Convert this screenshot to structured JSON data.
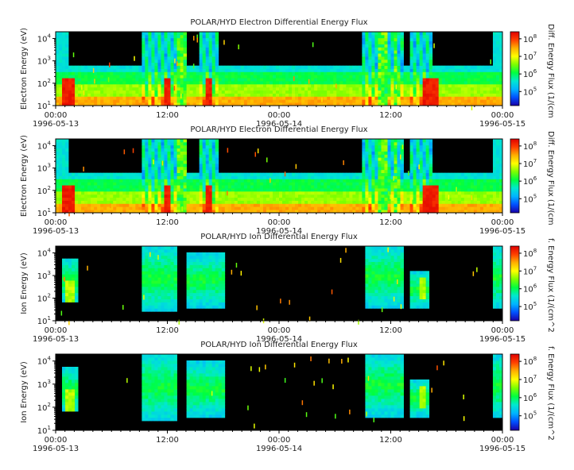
{
  "colors": {
    "colorbar_stops": [
      "#1a00a8",
      "#0050ff",
      "#00b4ff",
      "#00e8d0",
      "#00ff40",
      "#7cff00",
      "#ffff00",
      "#ffb000",
      "#ff4000",
      "#e00000"
    ],
    "background": "#000000",
    "frame": "#000000"
  },
  "chart_data": [
    {
      "type": "heatmap",
      "title": "POLAR/HYD  Electron Differential Energy Flux",
      "ylabel": "Electron Energy (eV)",
      "colorbar_label": "Diff. Energy Flux (1/(cm",
      "x_ticks": [
        "00:00",
        "12:00",
        "00:00",
        "12:00",
        "00:00"
      ],
      "x_dates": [
        "1996-05-13",
        "1996-05-14",
        "1996-05-15"
      ],
      "y_scale": "log",
      "ylim": [
        10,
        20000
      ],
      "y_ticks": [
        {
          "base": "10",
          "exp": "1"
        },
        {
          "base": "10",
          "exp": "2"
        },
        {
          "base": "10",
          "exp": "3"
        },
        {
          "base": "10",
          "exp": "4"
        }
      ],
      "colorbar_ticks": [
        {
          "base": "10",
          "exp": "5"
        },
        {
          "base": "10",
          "exp": "6"
        },
        {
          "base": "10",
          "exp": "7"
        },
        {
          "base": "10",
          "exp": "8"
        }
      ],
      "colorbar_range_log10": [
        4.2,
        8.4
      ]
    },
    {
      "type": "heatmap",
      "title": "POLAR/HYD  Electron Differential Energy Flux",
      "ylabel": "Electron Energy (eV)",
      "colorbar_label": "Diff. Energy Flux (1/(cm",
      "x_ticks": [
        "00:00",
        "12:00",
        "00:00",
        "12:00",
        "00:00"
      ],
      "x_dates": [
        "1996-05-13",
        "1996-05-14",
        "1996-05-15"
      ],
      "y_scale": "log",
      "ylim": [
        10,
        20000
      ],
      "y_ticks": [
        {
          "base": "10",
          "exp": "1"
        },
        {
          "base": "10",
          "exp": "2"
        },
        {
          "base": "10",
          "exp": "3"
        },
        {
          "base": "10",
          "exp": "4"
        }
      ],
      "colorbar_ticks": [
        {
          "base": "10",
          "exp": "5"
        },
        {
          "base": "10",
          "exp": "6"
        },
        {
          "base": "10",
          "exp": "7"
        },
        {
          "base": "10",
          "exp": "8"
        }
      ],
      "colorbar_range_log10": [
        4.2,
        8.4
      ]
    },
    {
      "type": "heatmap",
      "title": "POLAR/HYD  Ion Differential Energy Flux",
      "ylabel": "Ion Energy (eV)",
      "colorbar_label": "f. Energy Flux (1/(cm^2",
      "x_ticks": [
        "00:00",
        "12:00",
        "00:00",
        "12:00",
        "00:00"
      ],
      "x_dates": [
        "1996-05-13",
        "1996-05-14",
        "1996-05-15"
      ],
      "y_scale": "log",
      "ylim": [
        10,
        20000
      ],
      "y_ticks": [
        {
          "base": "10",
          "exp": "1"
        },
        {
          "base": "10",
          "exp": "2"
        },
        {
          "base": "10",
          "exp": "3"
        },
        {
          "base": "10",
          "exp": "4"
        }
      ],
      "colorbar_ticks": [
        {
          "base": "10",
          "exp": "5"
        },
        {
          "base": "10",
          "exp": "6"
        },
        {
          "base": "10",
          "exp": "7"
        },
        {
          "base": "10",
          "exp": "8"
        }
      ],
      "colorbar_range_log10": [
        4.2,
        8.4
      ]
    },
    {
      "type": "heatmap",
      "title": "POLAR/HYD  Ion Differential Energy Flux",
      "ylabel": "Ion Energy (eV)",
      "colorbar_label": "f. Energy Flux (1/(cm^2",
      "x_ticks": [
        "00:00",
        "12:00",
        "00:00",
        "12:00",
        "00:00"
      ],
      "x_dates": [
        "1996-05-13",
        "1996-05-14",
        "1996-05-15"
      ],
      "y_scale": "log",
      "ylim": [
        10,
        20000
      ],
      "y_ticks": [
        {
          "base": "10",
          "exp": "1"
        },
        {
          "base": "10",
          "exp": "2"
        },
        {
          "base": "10",
          "exp": "3"
        },
        {
          "base": "10",
          "exp": "4"
        }
      ],
      "colorbar_ticks": [
        {
          "base": "10",
          "exp": "5"
        },
        {
          "base": "10",
          "exp": "6"
        },
        {
          "base": "10",
          "exp": "7"
        },
        {
          "base": "10",
          "exp": "8"
        }
      ],
      "colorbar_range_log10": [
        4.2,
        8.4
      ]
    }
  ]
}
